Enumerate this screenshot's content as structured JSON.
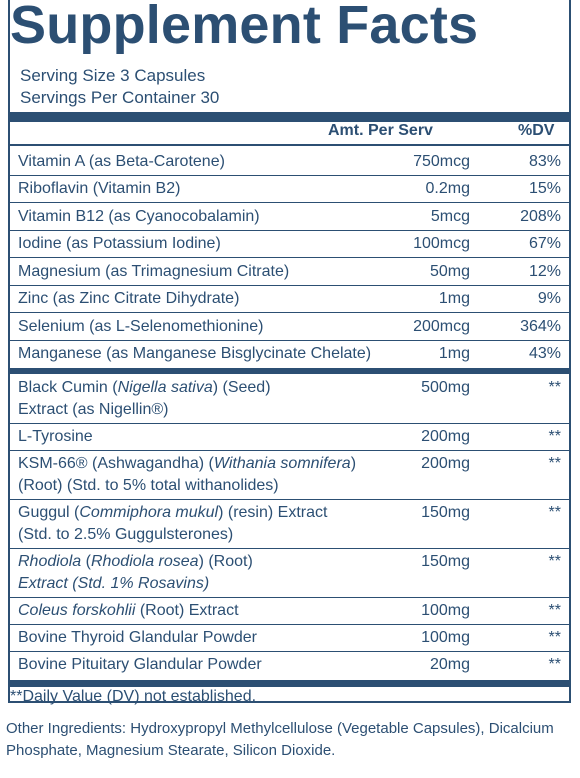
{
  "title": "Supplement Facts",
  "serving_size": "Serving Size 3 Capsules",
  "servings_per_container": "Servings Per Container 30",
  "header": {
    "amount": "Amt. Per Serv",
    "dv": "%DV"
  },
  "vitamins": [
    {
      "name": "Vitamin A (as Beta-Carotene)",
      "amount": "750mcg",
      "dv": "83%"
    },
    {
      "name": "Riboflavin (Vitamin B2)",
      "amount": "0.2mg",
      "dv": "15%"
    },
    {
      "name": "Vitamin B12 (as Cyanocobalamin)",
      "amount": "5mcg",
      "dv": "208%"
    },
    {
      "name": "Iodine (as Potassium Iodine)",
      "amount": "100mcg",
      "dv": "67%"
    },
    {
      "name": "Magnesium (as Trimagnesium Citrate)",
      "amount": "50mg",
      "dv": "12%"
    },
    {
      "name": "Zinc (as Zinc Citrate Dihydrate)",
      "amount": "1mg",
      "dv": "9%"
    },
    {
      "name": "Selenium (as L-Selenomethionine)",
      "amount": "200mcg",
      "dv": "364%"
    },
    {
      "name": "Manganese (as Manganese Bisglycinate Chelate)",
      "amount": "1mg",
      "dv": "43%"
    }
  ],
  "blend": [
    {
      "name_a": "Black Cumin (",
      "name_b": "Nigella sativa",
      "name_c": ") (Seed)",
      "name_d": "Extract (as Nigellin®)",
      "amount": "500mg",
      "dv": "**"
    },
    {
      "name_a": "L-Tyrosine",
      "amount": "200mg",
      "dv": "**"
    },
    {
      "name_a": "KSM-66® (Ashwagandha) (",
      "name_b": "Withania somnifera",
      "name_c": ")",
      "name_d": "(Root) (Std. to 5% total withanolides)",
      "amount": "200mg",
      "dv": "**"
    },
    {
      "name_a": "Guggul (",
      "name_b": "Commiphora mukul",
      "name_c": ") (resin) Extract",
      "name_d": "(Std. to 2.5% Guggulsterones)",
      "amount": "150mg",
      "dv": "**"
    },
    {
      "name_b": "Rhodiola",
      "name_a": " (",
      "name_b2": "Rhodiola rosea",
      "name_c": ") (Root)",
      "name_d": "Extract (Std. 1% Rosavins)",
      "amount": "150mg",
      "dv": "**"
    },
    {
      "name_b": "Coleus forskohlii",
      "name_c": " (Root) Extract",
      "amount": "100mg",
      "dv": "**"
    },
    {
      "name_a": "Bovine Thyroid Glandular Powder",
      "amount": "100mg",
      "dv": "**"
    },
    {
      "name_a": "Bovine Pituitary Glandular Powder",
      "amount": "20mg",
      "dv": "**"
    }
  ],
  "footnote": "**Daily Value (DV) not established.",
  "other_ingredients": "Other Ingredients: Hydroxypropyl Methylcellulose (Vegetable Capsules), Dicalcium Phosphate, Magnesium Stearate, Silicon Dioxide.",
  "colors": {
    "ink": "#2c4f73",
    "background": "#ffffff"
  }
}
